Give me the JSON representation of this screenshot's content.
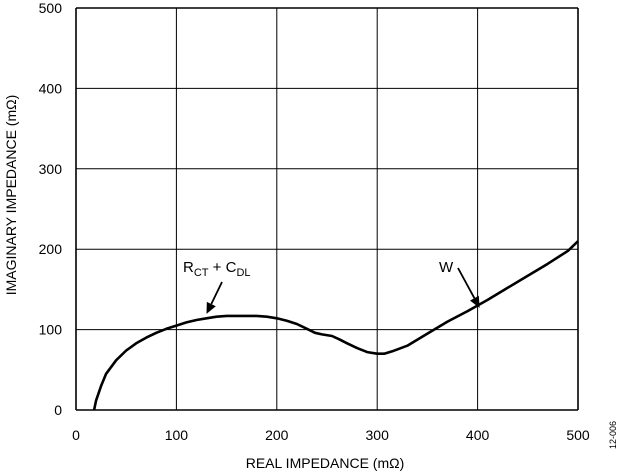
{
  "chart_data": {
    "type": "line",
    "xlabel": "REAL IMPEDANCE (mΩ)",
    "ylabel": "IMAGINARY IMPEDANCE (mΩ)",
    "xlim": [
      0,
      500
    ],
    "ylim": [
      0,
      500
    ],
    "x_ticks": [
      "0",
      "100",
      "200",
      "300",
      "400",
      "500"
    ],
    "y_ticks": [
      "0",
      "100",
      "200",
      "300",
      "400",
      "500"
    ],
    "grid": true,
    "series": [
      {
        "x": [
          18,
          20,
          25,
          30,
          40,
          50,
          60,
          70,
          80,
          90,
          100,
          110,
          120,
          130,
          140,
          150,
          160,
          170,
          180,
          190,
          200,
          210,
          220,
          230,
          238,
          245,
          255,
          262,
          270,
          280,
          290,
          300,
          307,
          315,
          330,
          350,
          370,
          390,
          410,
          430,
          450,
          470,
          490,
          500
        ],
        "y": [
          0,
          12,
          30,
          45,
          62,
          74,
          83,
          90,
          96,
          101,
          105,
          109,
          112,
          114,
          116,
          117,
          117,
          117,
          117,
          116,
          114,
          111,
          107,
          101,
          96,
          94,
          92,
          88,
          83,
          77,
          72,
          70,
          70,
          73,
          80,
          95,
          110,
          123,
          137,
          152,
          167,
          182,
          198,
          210
        ]
      }
    ],
    "annotations": [
      {
        "text": "R",
        "sub": "CT",
        "join": " + C",
        "sub2": "DL",
        "target_x": 128,
        "target_y": 117
      },
      {
        "text": "W",
        "target_x": 412,
        "target_y": 137
      }
    ],
    "figure_id": "12-006"
  }
}
